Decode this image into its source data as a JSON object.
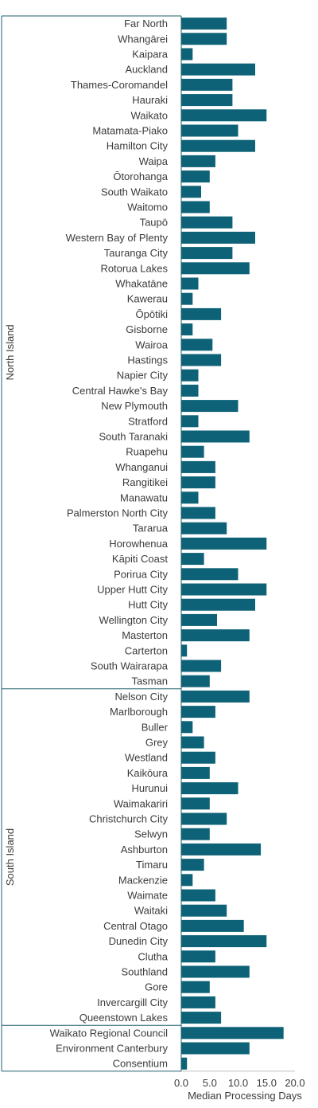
{
  "chart_data": {
    "type": "bar",
    "orientation": "horizontal",
    "xlabel": "Median Processing Days",
    "xlim": [
      0,
      20
    ],
    "xticks": [
      "0.0",
      "5.0",
      "10.0",
      "15.0",
      "20.0"
    ],
    "grid": false,
    "legend": "none",
    "bar_color": "#0e6277",
    "groups": [
      {
        "label": "North Island",
        "start": 0,
        "end": 43
      },
      {
        "label": "South Island",
        "start": 44,
        "end": 65
      },
      {
        "label": "",
        "start": 66,
        "end": 68
      }
    ],
    "categories": [
      "Far North",
      "Whangārei",
      "Kaipara",
      "Auckland",
      "Thames-Coromandel",
      "Hauraki",
      "Waikato",
      "Matamata-Piako",
      "Hamilton City",
      "Waipa",
      "Ōtorohanga",
      "South Waikato",
      "Waitomo",
      "Taupō",
      "Western Bay of Plenty",
      "Tauranga City",
      "Rotorua Lakes",
      "Whakatāne",
      "Kawerau",
      "Ōpōtiki",
      "Gisborne",
      "Wairoa",
      "Hastings",
      "Napier City",
      "Central Hawke's Bay",
      "New Plymouth",
      "Stratford",
      "South Taranaki",
      "Ruapehu",
      "Whanganui",
      "Rangitikei",
      "Manawatu",
      "Palmerston North City",
      "Tararua",
      "Horowhenua",
      "Kāpiti Coast",
      "Porirua City",
      "Upper Hutt City",
      "Hutt City",
      "Wellington City",
      "Masterton",
      "Carterton",
      "South Wairarapa",
      "Tasman",
      "Nelson City",
      "Marlborough",
      "Buller",
      "Grey",
      "Westland",
      "Kaikōura",
      "Hurunui",
      "Waimakariri",
      "Christchurch City",
      "Selwyn",
      "Ashburton",
      "Timaru",
      "Mackenzie",
      "Waimate",
      "Waitaki",
      "Central Otago",
      "Dunedin City",
      "Clutha",
      "Southland",
      "Gore",
      "Invercargill City",
      "Queenstown Lakes",
      "Waikato Regional Council",
      "Environment Canterbury",
      "Consentium"
    ],
    "values": [
      8,
      8,
      2,
      13,
      9,
      9,
      15,
      10,
      13,
      6,
      5,
      3.5,
      5,
      9,
      13,
      9,
      12,
      3,
      2,
      7,
      2,
      5.5,
      7,
      3,
      3,
      10,
      3,
      12,
      4,
      6,
      6,
      3,
      6,
      8,
      15,
      4,
      10,
      15,
      13,
      6.3,
      12,
      1,
      7,
      5,
      12,
      6,
      2,
      4,
      6,
      5,
      10,
      5,
      8,
      5,
      14,
      4,
      2,
      6,
      8,
      11,
      15,
      6,
      12,
      5,
      6,
      7,
      18,
      12,
      1
    ]
  }
}
